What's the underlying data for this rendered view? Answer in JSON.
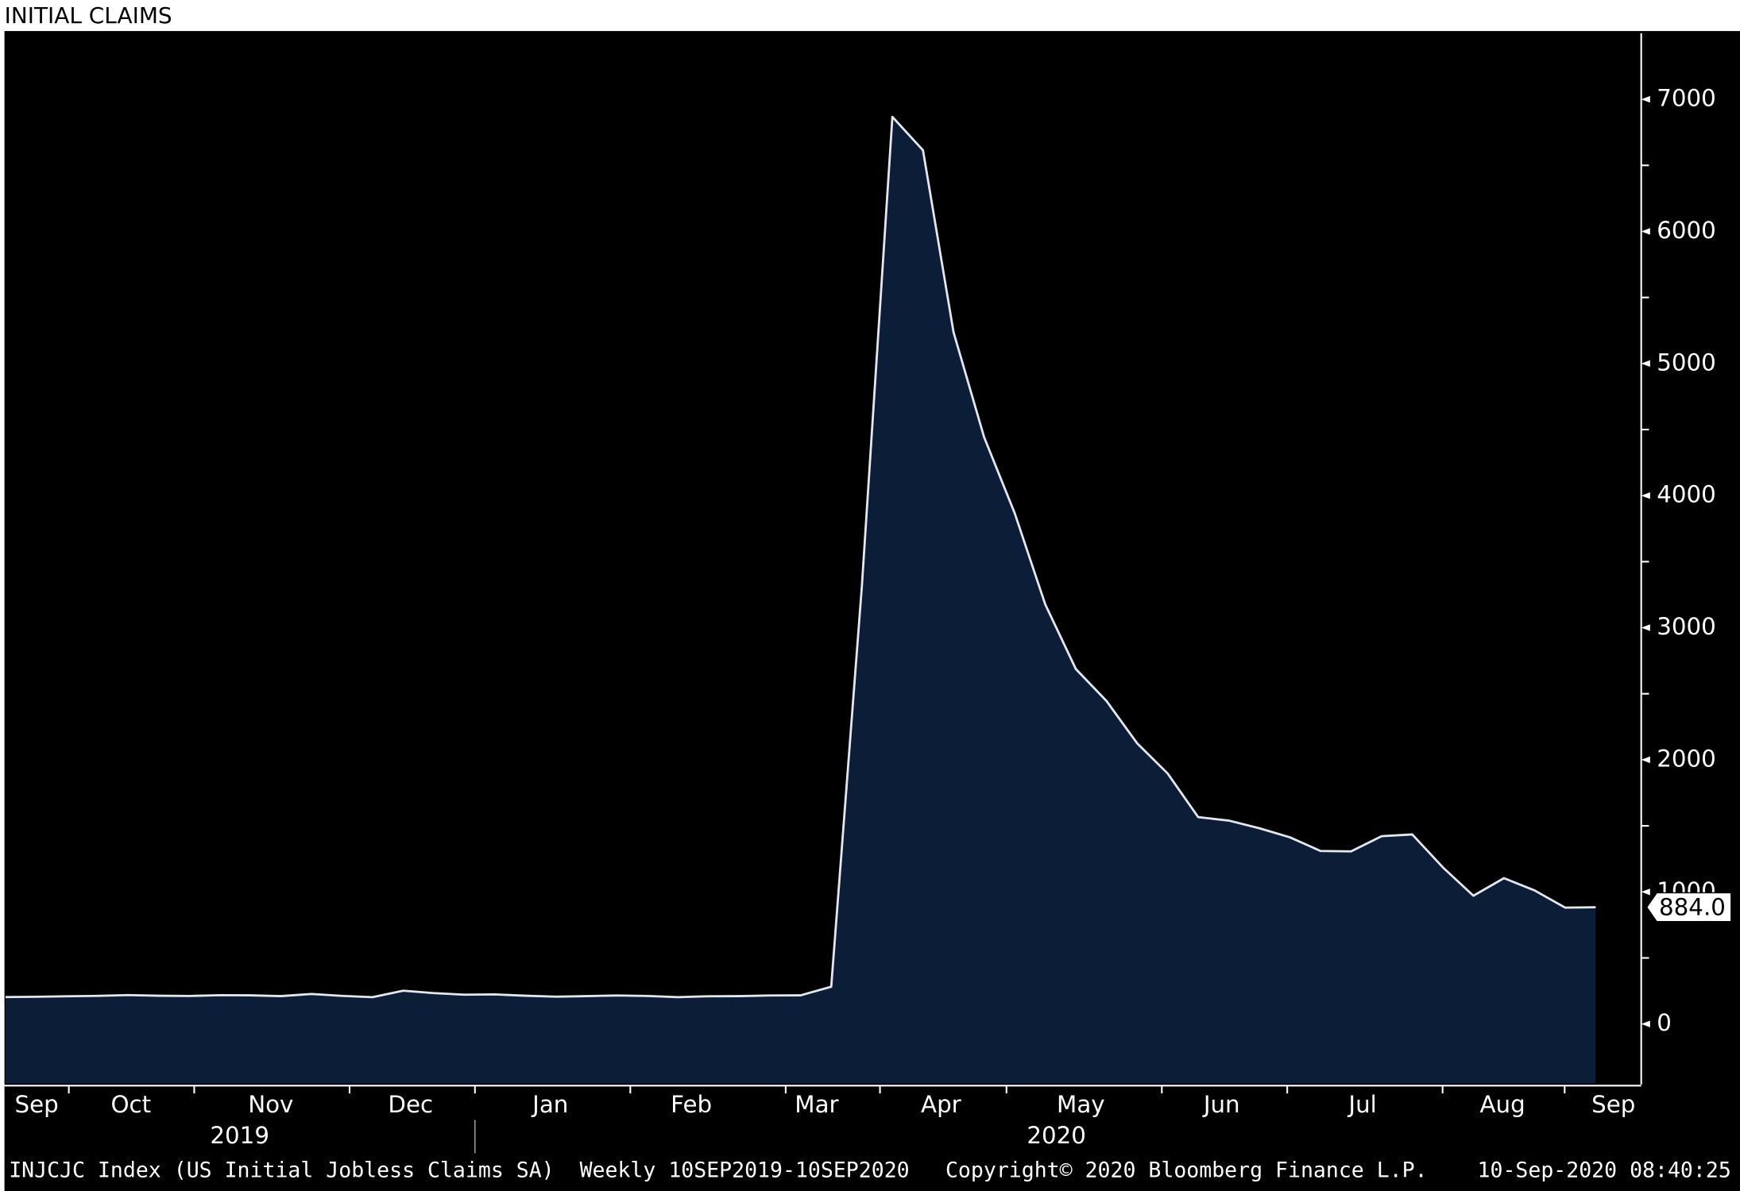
{
  "chart_data": {
    "type": "area",
    "title": "INITIAL CLAIMS",
    "values": [
      204,
      206,
      210,
      213,
      219,
      214,
      212,
      218,
      217,
      211,
      227,
      213,
      203,
      252,
      234,
      222,
      224,
      214,
      207,
      211,
      216,
      212,
      203,
      210,
      211,
      216,
      217,
      282,
      3307,
      6867,
      6615,
      5237,
      4442,
      3867,
      3176,
      2687,
      2446,
      2126,
      1897,
      1566,
      1540,
      1482,
      1413,
      1310,
      1307,
      1422,
      1435,
      1186,
      971,
      1104,
      1011,
      881,
      884
    ],
    "last_value_label": "884.0",
    "ylim": [
      -450,
      7500
    ],
    "yticks": [
      0,
      1000,
      2000,
      3000,
      4000,
      5000,
      6000,
      7000
    ],
    "months": [
      "Sep",
      "Oct",
      "Nov",
      "Dec",
      "Jan",
      "Feb",
      "Mar",
      "Apr",
      "May",
      "Jun",
      "Jul",
      "Aug",
      "Sep"
    ],
    "years": [
      "2019",
      "2020"
    ],
    "fill_color": "#0c1e37",
    "line_color": "#e4e7ee",
    "footer": {
      "series_info": "INJCJC Index (US Initial Jobless Claims SA)  Weekly 10SEP2019-10SEP2020",
      "copyright": "Copyright© 2020 Bloomberg Finance L.P.",
      "timestamp": "10-Sep-2020 08:40:25"
    }
  }
}
